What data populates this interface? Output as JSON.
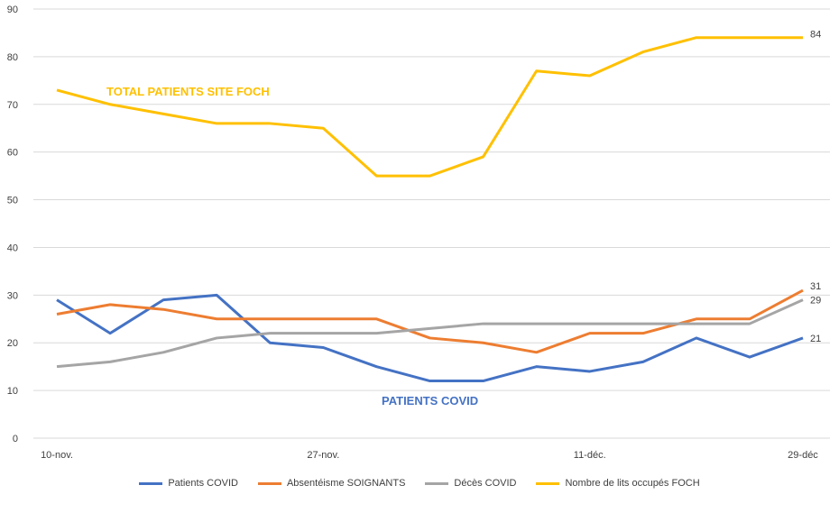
{
  "chart_data": {
    "type": "line",
    "categories": [
      "10-nov.",
      "",
      "",
      "",
      "",
      "27-nov.",
      "",
      "",
      "",
      "",
      "11-déc.",
      "",
      "",
      "",
      "29-déc"
    ],
    "ylim": [
      0,
      90
    ],
    "yticks": [
      0,
      10,
      20,
      30,
      40,
      50,
      60,
      70,
      80,
      90
    ],
    "grid": true,
    "legend_position": "bottom",
    "series": [
      {
        "name": "Patients COVID",
        "color": "#4472C4",
        "values": [
          29,
          22,
          29,
          30,
          20,
          19,
          15,
          12,
          12,
          15,
          14,
          16,
          21,
          17,
          21
        ],
        "end_label": "21"
      },
      {
        "name": "Absentéisme SOIGNANTS",
        "color": "#ED7D31",
        "values": [
          26,
          28,
          27,
          25,
          25,
          25,
          25,
          21,
          20,
          18,
          22,
          22,
          25,
          25,
          31
        ],
        "end_label": "31"
      },
      {
        "name": "Décès COVID",
        "color": "#A5A5A5",
        "values": [
          15,
          16,
          18,
          21,
          22,
          22,
          22,
          23,
          24,
          24,
          24,
          24,
          24,
          24,
          29
        ],
        "end_label": "29"
      },
      {
        "name": "Nombre de lits occupés FOCH",
        "color": "#FFC000",
        "values": [
          73,
          70,
          68,
          66,
          66,
          65,
          55,
          55,
          59,
          77,
          76,
          81,
          84,
          84,
          84
        ],
        "end_label": "84"
      }
    ],
    "annotations": [
      {
        "text": "TOTAL PATIENTS SITE FOCH",
        "color": "#FFC000"
      },
      {
        "text": "PATIENTS COVID",
        "color": "#4472C4"
      }
    ]
  }
}
